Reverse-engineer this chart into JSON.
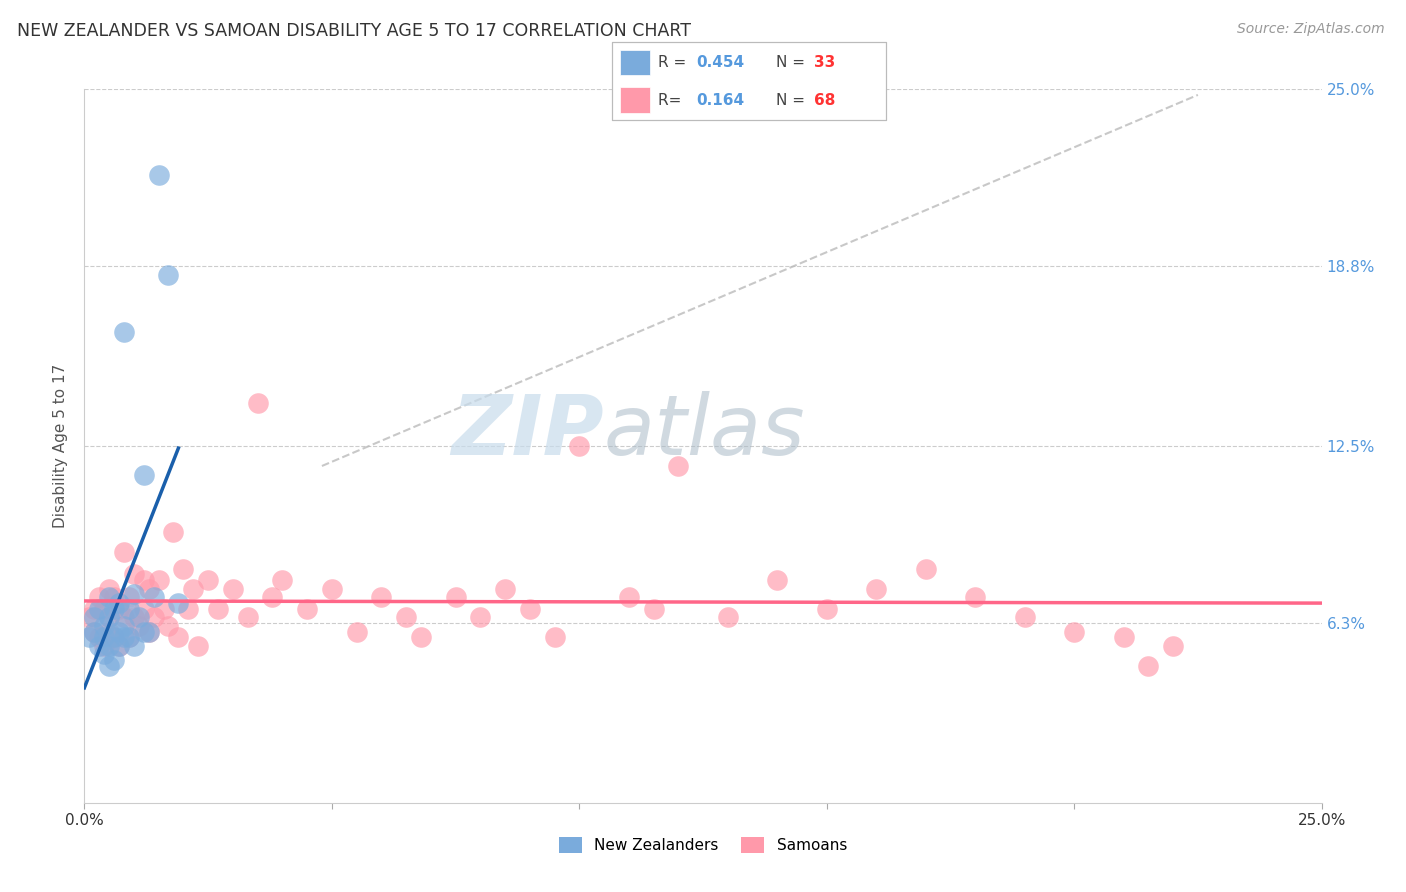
{
  "title": "NEW ZEALANDER VS SAMOAN DISABILITY AGE 5 TO 17 CORRELATION CHART",
  "source": "Source: ZipAtlas.com",
  "ylabel": "Disability Age 5 to 17",
  "xlim": [
    0.0,
    0.25
  ],
  "ylim": [
    0.0,
    0.25
  ],
  "ytick_positions": [
    0.063,
    0.125,
    0.188,
    0.25
  ],
  "ytick_labels_right": [
    "6.3%",
    "12.5%",
    "18.8%",
    "25.0%"
  ],
  "watermark_zip": "ZIP",
  "watermark_atlas": "atlas",
  "legend_r1": "0.454",
  "legend_n1": "33",
  "legend_r2": "0.164",
  "legend_n2": "68",
  "color_nz": "#7AABDC",
  "color_sa": "#FF99AA",
  "color_nz_line": "#1A5FAB",
  "color_sa_line": "#FF6688",
  "color_diag": "#BBBBBB",
  "color_right_axis": "#5599DD",
  "color_legend_text": "#5599DD",
  "color_legend_n": "#FF3333",
  "nz_x": [
    0.001,
    0.002,
    0.002,
    0.003,
    0.003,
    0.004,
    0.004,
    0.004,
    0.005,
    0.005,
    0.005,
    0.005,
    0.006,
    0.006,
    0.006,
    0.007,
    0.007,
    0.007,
    0.008,
    0.008,
    0.008,
    0.009,
    0.009,
    0.01,
    0.01,
    0.011,
    0.012,
    0.012,
    0.013,
    0.014,
    0.015,
    0.017,
    0.019
  ],
  "nz_y": [
    0.058,
    0.06,
    0.065,
    0.055,
    0.068,
    0.052,
    0.058,
    0.062,
    0.048,
    0.055,
    0.065,
    0.072,
    0.05,
    0.058,
    0.068,
    0.055,
    0.06,
    0.07,
    0.058,
    0.062,
    0.165,
    0.058,
    0.068,
    0.055,
    0.073,
    0.065,
    0.06,
    0.115,
    0.06,
    0.072,
    0.22,
    0.185,
    0.07
  ],
  "sa_x": [
    0.001,
    0.002,
    0.002,
    0.003,
    0.003,
    0.004,
    0.004,
    0.005,
    0.005,
    0.005,
    0.006,
    0.006,
    0.007,
    0.007,
    0.008,
    0.008,
    0.009,
    0.009,
    0.01,
    0.01,
    0.011,
    0.012,
    0.012,
    0.013,
    0.013,
    0.014,
    0.015,
    0.016,
    0.017,
    0.018,
    0.019,
    0.02,
    0.021,
    0.022,
    0.023,
    0.025,
    0.027,
    0.03,
    0.033,
    0.035,
    0.038,
    0.04,
    0.045,
    0.05,
    0.055,
    0.06,
    0.065,
    0.068,
    0.075,
    0.08,
    0.085,
    0.09,
    0.095,
    0.1,
    0.11,
    0.115,
    0.12,
    0.13,
    0.14,
    0.15,
    0.16,
    0.17,
    0.18,
    0.19,
    0.2,
    0.21,
    0.215,
    0.22
  ],
  "sa_y": [
    0.065,
    0.06,
    0.068,
    0.058,
    0.072,
    0.055,
    0.068,
    0.06,
    0.065,
    0.075,
    0.058,
    0.072,
    0.055,
    0.068,
    0.065,
    0.088,
    0.058,
    0.072,
    0.065,
    0.08,
    0.062,
    0.068,
    0.078,
    0.06,
    0.075,
    0.065,
    0.078,
    0.068,
    0.062,
    0.095,
    0.058,
    0.082,
    0.068,
    0.075,
    0.055,
    0.078,
    0.068,
    0.075,
    0.065,
    0.14,
    0.072,
    0.078,
    0.068,
    0.075,
    0.06,
    0.072,
    0.065,
    0.058,
    0.072,
    0.065,
    0.075,
    0.068,
    0.058,
    0.125,
    0.072,
    0.068,
    0.118,
    0.065,
    0.078,
    0.068,
    0.075,
    0.082,
    0.072,
    0.065,
    0.06,
    0.058,
    0.048,
    0.055
  ]
}
